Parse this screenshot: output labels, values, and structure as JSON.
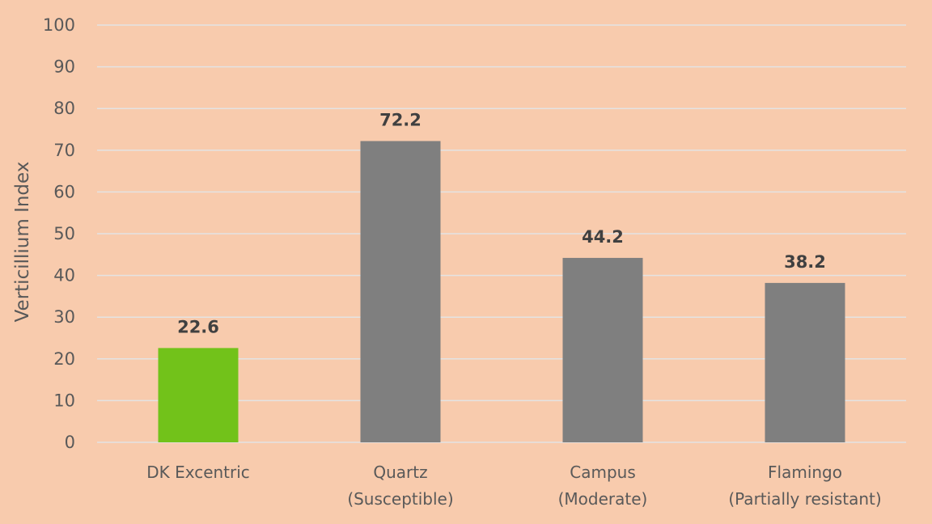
{
  "colors": {
    "background": "#F8CBAD",
    "gridline": "#E3E3E3",
    "highlight_bar": "#72C21A",
    "default_bar": "#7F7F7F"
  },
  "chart_data": {
    "type": "bar",
    "title": "",
    "xlabel": "",
    "ylabel": "Verticillium Index",
    "ylim": [
      0,
      100
    ],
    "yticks": [
      0,
      10,
      20,
      30,
      40,
      50,
      60,
      70,
      80,
      90,
      100
    ],
    "grid": true,
    "categories": [
      [
        "DK Excentric"
      ],
      [
        "Quartz",
        "(Susceptible)"
      ],
      [
        "Campus",
        "(Moderate)"
      ],
      [
        "Flamingo",
        "(Partially resistant)"
      ]
    ],
    "values": [
      22.6,
      72.2,
      44.2,
      38.2
    ],
    "data_labels": [
      "22.6",
      "72.2",
      "44.2",
      "38.2"
    ],
    "highlight_index": 0
  }
}
